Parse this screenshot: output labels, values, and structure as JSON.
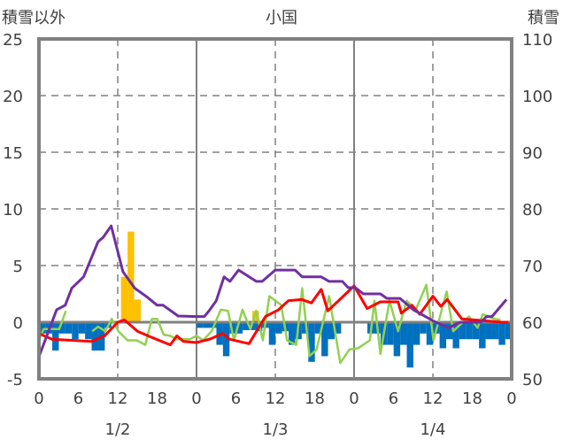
{
  "chart_data": {
    "type": "bar+line",
    "title": "小国",
    "ylabel_left": "積雪以外",
    "ylabel_right": "積雪",
    "ylim_left": [
      -5,
      25
    ],
    "yticks_left": [
      "25",
      "20",
      "15",
      "10",
      "5",
      "0",
      "-5"
    ],
    "ylim_right": [
      50,
      110
    ],
    "yticks_right": [
      "110",
      "100",
      "90",
      "80",
      "70",
      "60",
      "50"
    ],
    "xlim_hours": [
      0,
      72
    ],
    "xticks": [
      "0",
      "6",
      "12",
      "18",
      "0",
      "6",
      "12",
      "18",
      "0",
      "6",
      "12",
      "18",
      "0"
    ],
    "day_labels": [
      "1/2",
      "1/3",
      "1/4"
    ],
    "grid": true,
    "colors": {
      "blue": "#0070C0",
      "orange": "#FFC000",
      "red": "#FF0000",
      "green": "#92D050",
      "purple": "#7030A0",
      "axis": "#808080"
    },
    "blue_bars": [
      -1,
      -1,
      -2.5,
      -1,
      -1,
      -1.5,
      -1,
      -1.5,
      -2.5,
      -2.5,
      -0.5,
      0,
      0,
      0,
      0,
      0,
      0,
      0,
      0,
      0,
      0,
      0,
      0,
      0,
      -0.5,
      -0.5,
      -0.5,
      -2,
      -3,
      -1,
      -1,
      -0.7,
      -0.7,
      -0.8,
      -0.5,
      -2,
      -1,
      -0.8,
      -2,
      -1.5,
      -1,
      -3.5,
      -1,
      -3,
      -1.5,
      -1,
      0,
      0,
      0,
      0,
      -1,
      -1,
      -2,
      -2,
      -3,
      -2,
      -4,
      -2,
      -1,
      -2,
      -1,
      -2.3,
      -1.5,
      -2.3,
      -1.5,
      -1.5,
      -1.5,
      -2.3,
      -1.5,
      -1.5,
      -2,
      -1.5
    ],
    "orange_bars": [
      [
        13,
        4
      ],
      [
        14,
        8
      ],
      [
        15,
        2
      ],
      [
        33,
        1
      ]
    ],
    "red_line": [
      [
        0,
        -1
      ],
      [
        2,
        -1.5
      ],
      [
        5,
        -1.6
      ],
      [
        8,
        -1.7
      ],
      [
        10,
        -1.2
      ],
      [
        12,
        0
      ],
      [
        13,
        0.2
      ],
      [
        15,
        -0.8
      ],
      [
        17,
        -1.3
      ],
      [
        20,
        -2
      ],
      [
        21,
        -1.2
      ],
      [
        22,
        -1.7
      ],
      [
        24,
        -1.8
      ],
      [
        26,
        -1.5
      ],
      [
        28,
        -1
      ],
      [
        29,
        -1.5
      ],
      [
        32,
        -1.9
      ],
      [
        34.5,
        0.5
      ],
      [
        36.5,
        1.1
      ],
      [
        38,
        1.9
      ],
      [
        40,
        2
      ],
      [
        41.5,
        1.7
      ],
      [
        43,
        2.9
      ],
      [
        44,
        1
      ],
      [
        46,
        2.1
      ],
      [
        48,
        3.2
      ],
      [
        50,
        1.2
      ],
      [
        52,
        1.8
      ],
      [
        54.7,
        1.8
      ],
      [
        55.2,
        0.8
      ],
      [
        56.8,
        1.5
      ],
      [
        58,
        0.7
      ],
      [
        60,
        2.3
      ],
      [
        61.2,
        1.4
      ],
      [
        62.2,
        2
      ],
      [
        64.4,
        0.3
      ],
      [
        70.5,
        0
      ],
      [
        71.5,
        0
      ]
    ],
    "green_line": [
      [
        0,
        -1.6
      ],
      [
        0.7,
        -0.6
      ],
      [
        2.3,
        -0.6
      ],
      [
        3.1,
        -0.6
      ],
      [
        4.1,
        1
      ],
      null,
      [
        8.1,
        -0.8
      ],
      [
        9,
        -0.4
      ],
      [
        10.1,
        -0.8
      ],
      [
        11.1,
        0.3
      ],
      [
        12.1,
        -0.8
      ],
      [
        13.5,
        -1.6
      ],
      [
        14.9,
        -1.6
      ],
      [
        16.2,
        -2
      ],
      [
        17.2,
        0.3
      ],
      [
        18,
        0.3
      ],
      [
        19,
        -1.1
      ],
      [
        20,
        -1.2
      ],
      [
        21,
        -1.5
      ],
      [
        23,
        -1.5
      ],
      [
        24,
        -1.2
      ],
      [
        25,
        -1.6
      ],
      [
        26.3,
        -0.8
      ],
      [
        27.7,
        1.1
      ],
      [
        28.8,
        1
      ],
      [
        29.7,
        -1.6
      ],
      [
        31,
        1.1
      ],
      [
        32.2,
        -0.6
      ],
      [
        33.1,
        1
      ],
      [
        34.1,
        -1.6
      ],
      [
        35.1,
        2.3
      ],
      [
        36.9,
        1.5
      ],
      [
        37.8,
        -1.6
      ],
      [
        39.2,
        -2
      ],
      [
        40.1,
        3
      ],
      [
        41.2,
        -3
      ],
      [
        42.3,
        -2.4
      ],
      [
        44.2,
        2.3
      ],
      [
        45.9,
        -3.6
      ],
      [
        47.3,
        -2.4
      ],
      [
        48.6,
        -2.3
      ],
      [
        50.4,
        -1.6
      ],
      [
        51.1,
        1.9
      ],
      [
        52,
        -2.8
      ],
      [
        53.4,
        1.9
      ],
      [
        54.7,
        -0.8
      ],
      [
        56,
        1.9
      ],
      [
        57.4,
        1.1
      ],
      [
        59,
        3.3
      ],
      [
        60.1,
        -1.6
      ],
      [
        62.1,
        2.7
      ],
      [
        63.1,
        -0.8
      ],
      [
        65.5,
        0.5
      ],
      [
        66.8,
        -0.5
      ],
      [
        67.6,
        0.7
      ],
      [
        69.3,
        0.3
      ],
      [
        70.3,
        0.2
      ]
    ],
    "purple_line_right_axis": [
      [
        0,
        53.9
      ],
      [
        2.7,
        62.2
      ],
      [
        4,
        63
      ],
      [
        5,
        66
      ],
      [
        6.8,
        68
      ],
      [
        9,
        74.2
      ],
      [
        9.8,
        75
      ],
      [
        11,
        77
      ],
      [
        12.8,
        68.9
      ],
      [
        14.6,
        66
      ],
      [
        16.4,
        64.5
      ],
      [
        18,
        63
      ],
      [
        18.9,
        63
      ],
      [
        21.2,
        61.1
      ],
      [
        24,
        61
      ],
      [
        25.2,
        61
      ],
      [
        25.9,
        62
      ],
      [
        27,
        63.8
      ],
      [
        28.2,
        68
      ],
      [
        29.1,
        67.2
      ],
      [
        30.4,
        69.2
      ],
      [
        33.1,
        67.2
      ],
      [
        34,
        67.2
      ],
      [
        36,
        69.2
      ],
      [
        39,
        69.2
      ],
      [
        40.1,
        68
      ],
      [
        43,
        68
      ],
      [
        44.2,
        67.2
      ],
      [
        46.2,
        67.2
      ],
      [
        47.1,
        66.1
      ],
      [
        48.2,
        66.1
      ],
      [
        49.4,
        65
      ],
      [
        52,
        65
      ],
      [
        53,
        64.2
      ],
      [
        55,
        64.2
      ],
      [
        57,
        62.2
      ],
      [
        60.1,
        60.2
      ],
      [
        62.4,
        59
      ],
      [
        64.2,
        60
      ],
      [
        67.3,
        60
      ],
      [
        68.2,
        61
      ],
      [
        69,
        61
      ],
      [
        71.2,
        64
      ]
    ]
  }
}
